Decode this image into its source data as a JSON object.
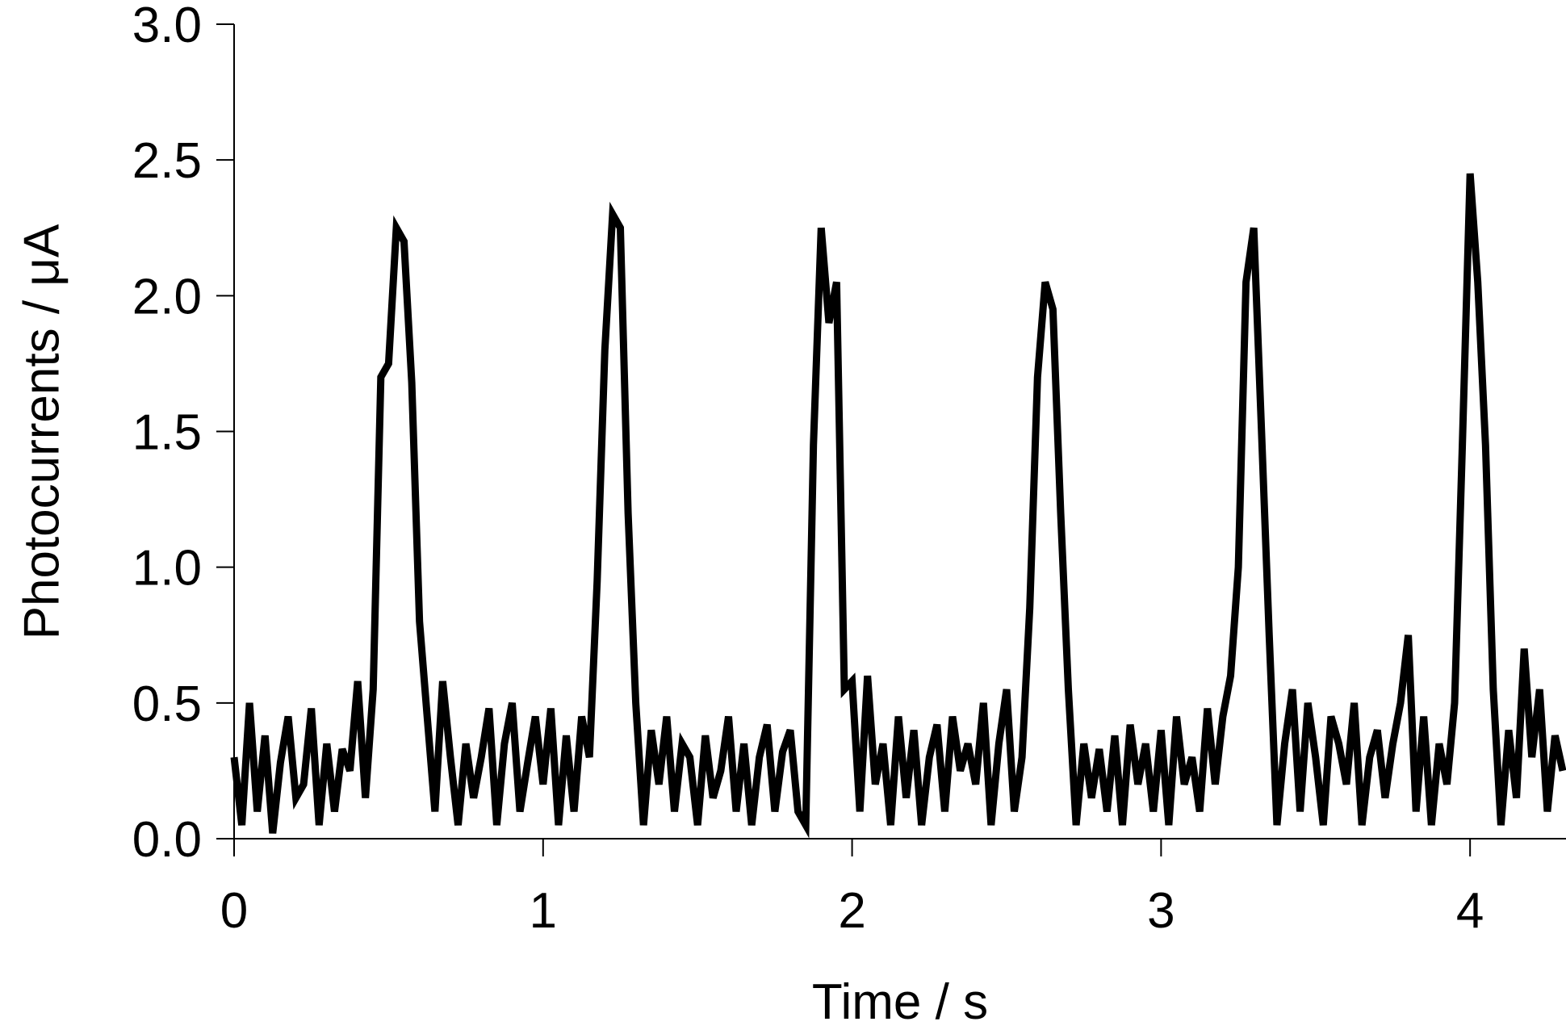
{
  "chart_data": {
    "type": "line",
    "xlabel": "Time / s",
    "ylabel": "Photocurrents / μA",
    "x": [
      0,
      0.025,
      0.05,
      0.075,
      0.1,
      0.125,
      0.15,
      0.175,
      0.2,
      0.225,
      0.25,
      0.275,
      0.3,
      0.325,
      0.35,
      0.375,
      0.4,
      0.425,
      0.45,
      0.475,
      0.5,
      0.525,
      0.55,
      0.575,
      0.6,
      0.625,
      0.65,
      0.675,
      0.7,
      0.725,
      0.75,
      0.775,
      0.8,
      0.825,
      0.85,
      0.875,
      0.9,
      0.925,
      0.95,
      0.975,
      1,
      1.025,
      1.05,
      1.075,
      1.1,
      1.125,
      1.15,
      1.175,
      1.2,
      1.225,
      1.25,
      1.275,
      1.3,
      1.325,
      1.35,
      1.375,
      1.4,
      1.425,
      1.45,
      1.475,
      1.5,
      1.525,
      1.55,
      1.575,
      1.6,
      1.625,
      1.65,
      1.675,
      1.7,
      1.725,
      1.75,
      1.775,
      1.8,
      1.825,
      1.85,
      1.875,
      1.9,
      1.925,
      1.95,
      1.975,
      2,
      2.025,
      2.05,
      2.075,
      2.1,
      2.125,
      2.15,
      2.175,
      2.2,
      2.225,
      2.25,
      2.275,
      2.3,
      2.325,
      2.35,
      2.375,
      2.4,
      2.425,
      2.45,
      2.475,
      2.5,
      2.525,
      2.55,
      2.575,
      2.6,
      2.625,
      2.65,
      2.675,
      2.7,
      2.725,
      2.75,
      2.775,
      2.8,
      2.825,
      2.85,
      2.875,
      2.9,
      2.925,
      2.95,
      2.975,
      3,
      3.025,
      3.05,
      3.075,
      3.1,
      3.125,
      3.15,
      3.175,
      3.2,
      3.225,
      3.25,
      3.275,
      3.3,
      3.325,
      3.35,
      3.375,
      3.4,
      3.425,
      3.45,
      3.475,
      3.5,
      3.525,
      3.55,
      3.575,
      3.6,
      3.625,
      3.65,
      3.675,
      3.7,
      3.725,
      3.75,
      3.775,
      3.8,
      3.825,
      3.85,
      3.875,
      3.9,
      3.925,
      3.95,
      3.975,
      4,
      4.025,
      4.05,
      4.075,
      4.1,
      4.125,
      4.15,
      4.175,
      4.2,
      4.225,
      4.25,
      4.275,
      4.3
    ],
    "series": [
      {
        "color": "#000000",
        "values": [
          0.3,
          0.05,
          0.5,
          0.1,
          0.38,
          0.02,
          0.28,
          0.45,
          0.15,
          0.2,
          0.48,
          0.05,
          0.35,
          0.1,
          0.33,
          0.25,
          0.58,
          0.15,
          0.55,
          1.7,
          1.75,
          2.25,
          2.2,
          1.68,
          0.8,
          0.45,
          0.1,
          0.58,
          0.3,
          0.05,
          0.35,
          0.15,
          0.3,
          0.48,
          0.05,
          0.35,
          0.5,
          0.1,
          0.28,
          0.45,
          0.2,
          0.48,
          0.05,
          0.38,
          0.1,
          0.45,
          0.3,
          0.95,
          1.8,
          2.3,
          2.25,
          1.2,
          0.5,
          0.05,
          0.4,
          0.2,
          0.45,
          0.1,
          0.35,
          0.3,
          0.05,
          0.38,
          0.15,
          0.25,
          0.45,
          0.1,
          0.35,
          0.05,
          0.3,
          0.42,
          0.1,
          0.32,
          0.4,
          0.1,
          0.05,
          1.45,
          2.25,
          1.9,
          2.05,
          0.55,
          0.58,
          0.1,
          0.6,
          0.2,
          0.35,
          0.05,
          0.45,
          0.15,
          0.4,
          0.05,
          0.3,
          0.42,
          0.1,
          0.45,
          0.25,
          0.35,
          0.2,
          0.5,
          0.05,
          0.35,
          0.55,
          0.1,
          0.3,
          0.85,
          1.7,
          2.05,
          1.95,
          1.2,
          0.55,
          0.05,
          0.35,
          0.15,
          0.33,
          0.1,
          0.38,
          0.05,
          0.42,
          0.2,
          0.35,
          0.1,
          0.4,
          0.05,
          0.45,
          0.2,
          0.3,
          0.1,
          0.48,
          0.2,
          0.45,
          0.6,
          1.0,
          2.05,
          2.25,
          1.5,
          0.75,
          0.05,
          0.35,
          0.55,
          0.1,
          0.5,
          0.3,
          0.05,
          0.45,
          0.35,
          0.2,
          0.5,
          0.05,
          0.3,
          0.4,
          0.15,
          0.35,
          0.5,
          0.75,
          0.1,
          0.45,
          0.05,
          0.35,
          0.2,
          0.5,
          1.45,
          2.45,
          2.05,
          1.45,
          0.55,
          0.05,
          0.4,
          0.15,
          0.7,
          0.3,
          0.55,
          0.1,
          0.38,
          0.25
        ]
      }
    ],
    "xlim": [
      0,
      4.3
    ],
    "ylim": [
      0,
      3
    ],
    "xticks": [
      0,
      1,
      2,
      3,
      4
    ],
    "yticks": [
      {
        "value": 0,
        "label": "0.0"
      },
      0.5,
      {
        "value": 1,
        "label": "1.0"
      },
      1.5,
      {
        "value": 2,
        "label": "2.0"
      },
      2.5,
      {
        "value": 3,
        "label": "3.0"
      }
    ]
  }
}
